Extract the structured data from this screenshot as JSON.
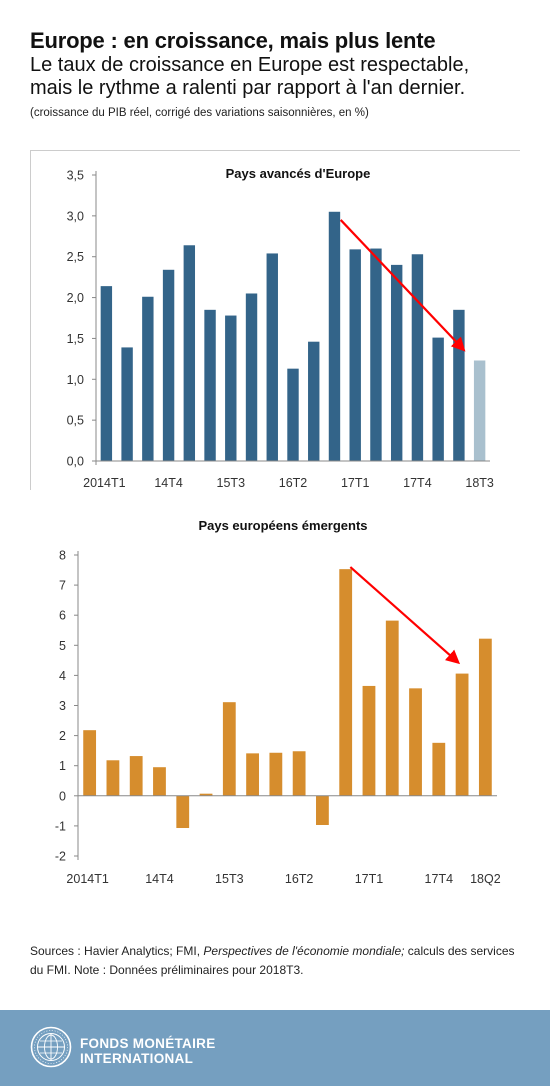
{
  "header": {
    "title": "Europe : en croissance, mais plus lente",
    "subtitle_line1": "Le taux de croissance en Europe est respectable,",
    "subtitle_line2": "mais le rythme a ralenti par rapport à l'an dernier.",
    "note": "(croissance du PIB réel, corrigé des variations saisonnières, en %)"
  },
  "chart_data": [
    {
      "type": "bar",
      "title": "Pays avancés d'Europe",
      "categories": [
        "2014T1",
        "2014T2",
        "2014T3",
        "2014T4",
        "2015T1",
        "2015T2",
        "2015T3",
        "2015T4",
        "2016T1",
        "2016T2",
        "2016T3",
        "2016T4",
        "2017T1",
        "2017T2",
        "2017T3",
        "2017T4",
        "2018T1",
        "2018T2",
        "2018T3"
      ],
      "tick_labels": [
        {
          "index": 0,
          "label": "2014T1"
        },
        {
          "index": 3,
          "label": "14T4"
        },
        {
          "index": 6,
          "label": "15T3"
        },
        {
          "index": 9,
          "label": "16T2"
        },
        {
          "index": 12,
          "label": "17T1"
        },
        {
          "index": 15,
          "label": "17T4"
        },
        {
          "index": 18,
          "label": "18T3"
        }
      ],
      "values": [
        2.14,
        1.39,
        2.01,
        2.34,
        2.64,
        1.85,
        1.78,
        2.05,
        2.54,
        1.13,
        1.46,
        3.05,
        2.59,
        2.6,
        2.4,
        2.53,
        1.51,
        1.85,
        1.23
      ],
      "preliminary_index": 18,
      "ylim": [
        0,
        3.5
      ],
      "yticks": [
        0,
        0.5,
        1,
        1.5,
        2,
        2.5,
        3,
        3.5
      ],
      "ytick_labels": [
        "0,0",
        "0,5",
        "1,0",
        "1,5",
        "2,0",
        "2,5",
        "3,0",
        "3,5"
      ],
      "xlabel": "",
      "ylabel": "",
      "grid": false,
      "colors": {
        "bar": "#336489",
        "preliminary": "#a9c0ce",
        "arrow": "#ff0000",
        "axis": "#888888",
        "text": "#333333"
      },
      "arrow": {
        "from": [
          11.8,
          2.95
        ],
        "to": [
          17.7,
          1.37
        ]
      }
    },
    {
      "type": "bar",
      "title": "Pays européens émergents",
      "categories": [
        "2014T1",
        "2014T2",
        "2014T3",
        "2014T4",
        "2015T1",
        "2015T2",
        "2015T3",
        "2015T4",
        "2016T1",
        "2016T2",
        "2016T3",
        "2016T4",
        "2017T1",
        "2017T2",
        "2017T3",
        "2017T4",
        "2018T1",
        "2018T2"
      ],
      "tick_labels": [
        {
          "index": 0,
          "label": "2014T1"
        },
        {
          "index": 3,
          "label": "14T4"
        },
        {
          "index": 6,
          "label": "15T3"
        },
        {
          "index": 9,
          "label": "16T2"
        },
        {
          "index": 12,
          "label": "17T1"
        },
        {
          "index": 15,
          "label": "17T4"
        },
        {
          "index": 17,
          "label": "18Q2"
        }
      ],
      "values": [
        2.18,
        1.18,
        1.32,
        0.95,
        -1.07,
        0.07,
        3.11,
        1.41,
        1.43,
        1.48,
        -0.97,
        7.53,
        3.65,
        5.82,
        3.57,
        1.76,
        4.06,
        5.22
      ],
      "ylim": [
        -2,
        8
      ],
      "yticks": [
        -2,
        -1,
        0,
        1,
        2,
        3,
        4,
        5,
        6,
        7,
        8
      ],
      "ytick_labels": [
        "-2",
        "-1",
        "0",
        "1",
        "2",
        "3",
        "4",
        "5",
        "6",
        "7",
        "8"
      ],
      "xlabel": "",
      "ylabel": "",
      "grid": false,
      "colors": {
        "bar": "#d68d2d",
        "arrow": "#ff0000",
        "axis": "#888888",
        "text": "#333333"
      },
      "arrow": {
        "from": [
          11.7,
          7.6
        ],
        "to": [
          16.3,
          4.45
        ]
      }
    }
  ],
  "sources": {
    "prefix": "Sources : Havier Analytics; FMI, ",
    "italic": "Perspectives de l'économie mondiale;",
    "suffix": " calculs des services du FMI. Note : Données préliminaires pour 2018T3."
  },
  "footer": {
    "line1": "FONDS MONÉTAIRE",
    "line2": "INTERNATIONAL",
    "colors": {
      "background": "#759fc0",
      "text": "#ffffff"
    }
  }
}
